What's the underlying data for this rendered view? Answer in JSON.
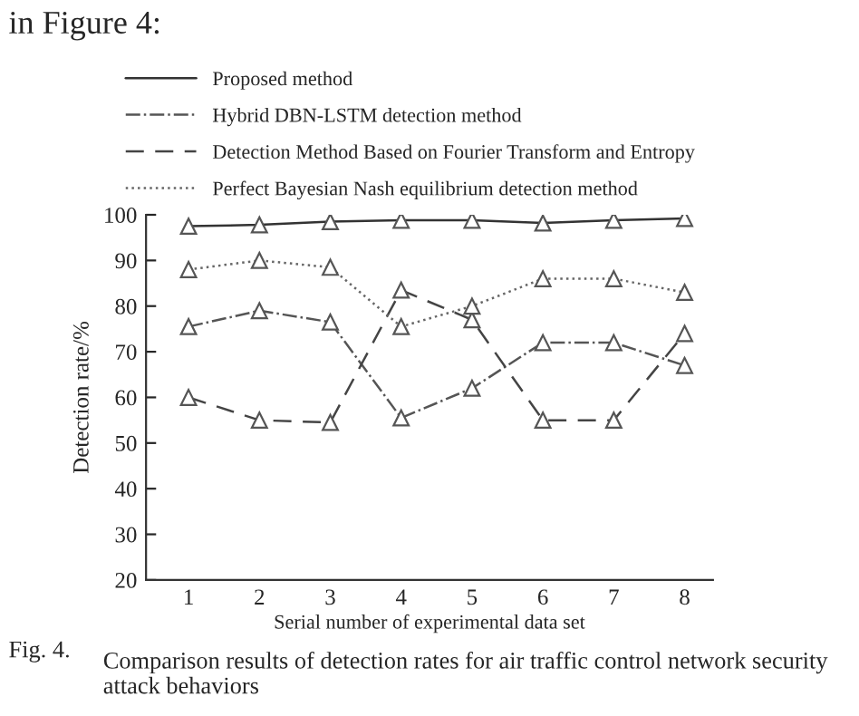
{
  "chart_data": {
    "type": "line",
    "xlabel": "Serial number of experimental data set",
    "ylabel": "Detection rate/%",
    "categories": [
      "1",
      "2",
      "3",
      "4",
      "5",
      "6",
      "7",
      "8"
    ],
    "series": [
      {
        "name": "Proposed method",
        "color": "#333333",
        "line_style": "solid",
        "values": [
          97.5,
          97.8,
          98.5,
          98.8,
          98.8,
          98.2,
          98.8,
          99.2
        ]
      },
      {
        "name": "Hybrid DBN-LSTM detection method",
        "color": "#555555",
        "line_style": "dashdot",
        "values": [
          75.5,
          79,
          76.5,
          55.5,
          62,
          72,
          72,
          67
        ]
      },
      {
        "name": "Detection Method Based on Fourier Transform and Entropy",
        "color": "#444444",
        "line_style": "dashed",
        "values": [
          60,
          55,
          54.5,
          83.5,
          77,
          55,
          55,
          74
        ]
      },
      {
        "name": "Perfect Bayesian Nash equilibrium detection method",
        "color": "#666666",
        "line_style": "dotted",
        "values": [
          88,
          90,
          88.5,
          75.5,
          80,
          86,
          86,
          83
        ]
      }
    ],
    "ylim": [
      20,
      100
    ],
    "yticks": [
      20,
      30,
      40,
      50,
      60,
      70,
      80,
      90,
      100
    ],
    "marker": "triangle",
    "legend": "top",
    "grid": false,
    "annotations": [
      "in Figure 4:",
      "Fig. 4.",
      "Comparison results of detection rates for air traffic control network security attack behaviors"
    ]
  }
}
